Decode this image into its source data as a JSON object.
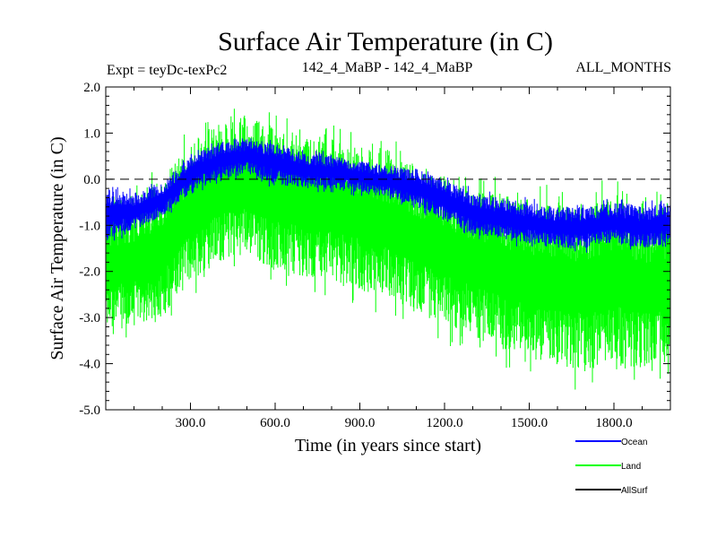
{
  "chart_data": {
    "type": "line",
    "title": "Surface Air Temperature (in C)",
    "subtitle_left": "Expt = teyDc-texPc2",
    "subtitle_center": "142_4_MaBP - 142_4_MaBP",
    "subtitle_right": "ALL_MONTHS",
    "xlabel": "Time (in years since start)",
    "ylabel": "Surface Air Temperature (in C)",
    "xlim": [
      0,
      2000
    ],
    "ylim": [
      -5.0,
      2.0
    ],
    "x_ticks": [
      300,
      600,
      900,
      1200,
      1500,
      1800
    ],
    "x_tick_labels": [
      "300.0",
      "600.0",
      "900.0",
      "1200.0",
      "1500.0",
      "1800.0"
    ],
    "y_ticks": [
      2.0,
      1.0,
      0.0,
      -1.0,
      -2.0,
      -3.0,
      -4.0,
      -5.0
    ],
    "y_tick_labels": [
      "2.0",
      "1.0",
      "0.0",
      "-1.0",
      "-2.0",
      "-3.0",
      "-4.0",
      "-5.0"
    ],
    "reference_line": 0.0,
    "legend_position": "bottom-right",
    "series": [
      {
        "name": "Land",
        "color": "#00ff00",
        "x": [
          0,
          100,
          200,
          300,
          400,
          500,
          600,
          700,
          800,
          900,
          1000,
          1100,
          1200,
          1300,
          1400,
          1500,
          1600,
          1700,
          1800,
          1900,
          2000
        ],
        "high": [
          -0.5,
          -0.4,
          0.0,
          0.8,
          1.2,
          1.4,
          1.1,
          1.0,
          0.9,
          0.8,
          0.6,
          0.3,
          0.1,
          -0.2,
          -0.3,
          -0.4,
          -0.5,
          -0.5,
          -0.4,
          -0.6,
          -0.5
        ],
        "low": [
          -3.3,
          -3.2,
          -3.0,
          -2.2,
          -1.8,
          -1.6,
          -2.0,
          -2.1,
          -2.2,
          -2.4,
          -2.6,
          -2.9,
          -3.2,
          -3.4,
          -3.7,
          -3.9,
          -4.1,
          -4.2,
          -4.0,
          -4.1,
          -4.0
        ]
      },
      {
        "name": "Ocean",
        "color": "#0000ff",
        "x": [
          0,
          100,
          200,
          300,
          400,
          500,
          600,
          700,
          800,
          900,
          1000,
          1100,
          1200,
          1300,
          1400,
          1500,
          1600,
          1700,
          1800,
          1900,
          2000
        ],
        "high": [
          -0.2,
          -0.3,
          -0.1,
          0.5,
          0.8,
          0.9,
          0.8,
          0.6,
          0.5,
          0.4,
          0.3,
          0.2,
          0.0,
          -0.3,
          -0.4,
          -0.5,
          -0.6,
          -0.6,
          -0.5,
          -0.6,
          -0.5
        ],
        "low": [
          -1.3,
          -1.1,
          -0.8,
          -0.3,
          0.0,
          0.1,
          -0.1,
          -0.2,
          -0.2,
          -0.3,
          -0.4,
          -0.6,
          -0.9,
          -1.2,
          -1.3,
          -1.4,
          -1.5,
          -1.5,
          -1.4,
          -1.5,
          -1.4
        ]
      },
      {
        "name": "AllSurf",
        "color": "#000000",
        "x": [],
        "high": [],
        "low": []
      }
    ]
  }
}
